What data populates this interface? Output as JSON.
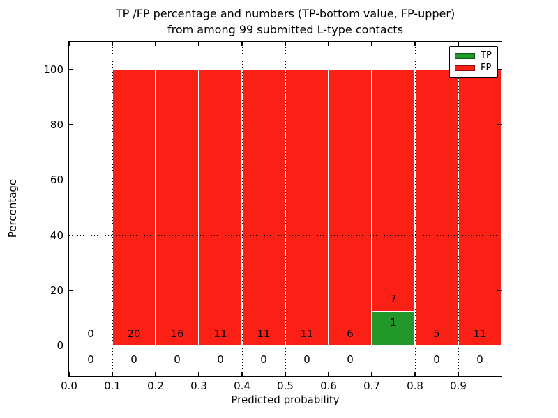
{
  "title": {
    "line1": "TP /FP percentage and numbers (TP-bottom value, FP-upper)",
    "line2": "from among 99 submitted L-type contacts"
  },
  "chart_data": {
    "type": "bar",
    "subtype": "stacked-percentage",
    "title": "TP /FP percentage and numbers (TP-bottom value, FP-upper) from among 99 submitted L-type contacts",
    "xlabel": "Predicted probability",
    "ylabel": "Percentage",
    "xlim": [
      0.0,
      1.0
    ],
    "ylim": [
      -11,
      110
    ],
    "grid": true,
    "grid_style": "dotted",
    "legend_position": "upper-right",
    "total_contacts": 99,
    "x_tick_values": [
      0.0,
      0.1,
      0.2,
      0.3,
      0.4,
      0.5,
      0.6,
      0.7,
      0.8,
      0.9
    ],
    "x_tick_labels": [
      "0.0",
      "0.1",
      "0.2",
      "0.3",
      "0.4",
      "0.5",
      "0.6",
      "0.7",
      "0.8",
      "0.9"
    ],
    "y_tick_values": [
      0,
      20,
      40,
      60,
      80,
      100
    ],
    "y_tick_labels": [
      "0",
      "20",
      "40",
      "60",
      "80",
      "100"
    ],
    "bins": [
      {
        "range": [
          0.0,
          0.1
        ],
        "tp_count": 0,
        "fp_count": 0,
        "tp_pct": 0,
        "fp_pct": 0
      },
      {
        "range": [
          0.1,
          0.2
        ],
        "tp_count": 0,
        "fp_count": 20,
        "tp_pct": 0,
        "fp_pct": 100
      },
      {
        "range": [
          0.2,
          0.3
        ],
        "tp_count": 0,
        "fp_count": 16,
        "tp_pct": 0,
        "fp_pct": 100
      },
      {
        "range": [
          0.3,
          0.4
        ],
        "tp_count": 0,
        "fp_count": 11,
        "tp_pct": 0,
        "fp_pct": 100
      },
      {
        "range": [
          0.4,
          0.5
        ],
        "tp_count": 0,
        "fp_count": 11,
        "tp_pct": 0,
        "fp_pct": 100
      },
      {
        "range": [
          0.5,
          0.6
        ],
        "tp_count": 0,
        "fp_count": 11,
        "tp_pct": 0,
        "fp_pct": 100
      },
      {
        "range": [
          0.6,
          0.7
        ],
        "tp_count": 0,
        "fp_count": 6,
        "tp_pct": 0,
        "fp_pct": 100
      },
      {
        "range": [
          0.7,
          0.8
        ],
        "tp_count": 1,
        "fp_count": 7,
        "tp_pct": 12.5,
        "fp_pct": 87.5
      },
      {
        "range": [
          0.8,
          0.9
        ],
        "tp_count": 0,
        "fp_count": 5,
        "tp_pct": 0,
        "fp_pct": 100
      },
      {
        "range": [
          0.9,
          1.0
        ],
        "tp_count": 0,
        "fp_count": 11,
        "tp_pct": 0,
        "fp_pct": 100
      }
    ],
    "legend": [
      {
        "label": "TP",
        "color": "#22982a"
      },
      {
        "label": "FP",
        "color": "#fb2015"
      }
    ]
  },
  "colors": {
    "tp": "#22982a",
    "fp": "#fb2015",
    "background": "#ffffff",
    "axis": "#000000",
    "text": "#000000"
  }
}
